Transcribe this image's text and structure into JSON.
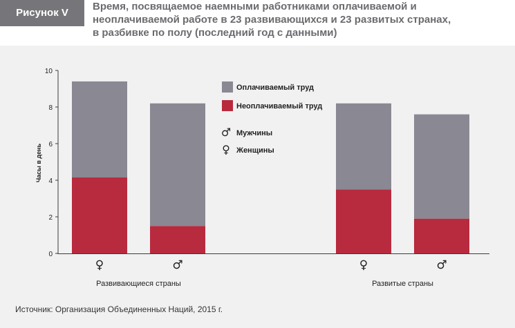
{
  "figure": {
    "label": "Рисунок V",
    "title_lines": [
      "Время, посвящаемое наемными работниками оплачиваемой и",
      "неоплачиваемой работе в 23 развивающихся и 23 развитых странах,",
      "в разбивке по полу (последний год с данными)"
    ],
    "source": "Источник: Организация Объединенных Наций, 2015 г."
  },
  "colors": {
    "paid": "#8a8892",
    "unpaid": "#b82a3e",
    "panel_bg": "#f1f1f2",
    "badge_bg": "#76767a",
    "title": "#6b6b6f"
  },
  "chart_data": {
    "type": "bar",
    "stacked": true,
    "ylabel": "Часы в день",
    "ylim": [
      0,
      10
    ],
    "yticks": [
      0,
      2,
      4,
      6,
      8,
      10
    ],
    "grid": false,
    "legend_position": "top-center",
    "groups": [
      {
        "label": "Развивающиеся страны",
        "bars": [
          {
            "sex_symbol": "♀",
            "sex": "female",
            "unpaid": 4.15,
            "paid": 5.25
          },
          {
            "sex_symbol": "♂",
            "sex": "male",
            "unpaid": 1.5,
            "paid": 6.7
          }
        ]
      },
      {
        "label": "Развитые страны",
        "bars": [
          {
            "sex_symbol": "♀",
            "sex": "female",
            "unpaid": 3.5,
            "paid": 4.7
          },
          {
            "sex_symbol": "♂",
            "sex": "male",
            "unpaid": 1.9,
            "paid": 5.7
          }
        ]
      }
    ],
    "series": [
      {
        "name": "Оплачиваемый труд",
        "key": "paid"
      },
      {
        "name": "Неоплачиваемый труд",
        "key": "unpaid"
      }
    ],
    "legend_symbols": [
      {
        "symbol": "♂",
        "label": "Мужчины"
      },
      {
        "symbol": "♀",
        "label": "Женщины"
      }
    ]
  }
}
